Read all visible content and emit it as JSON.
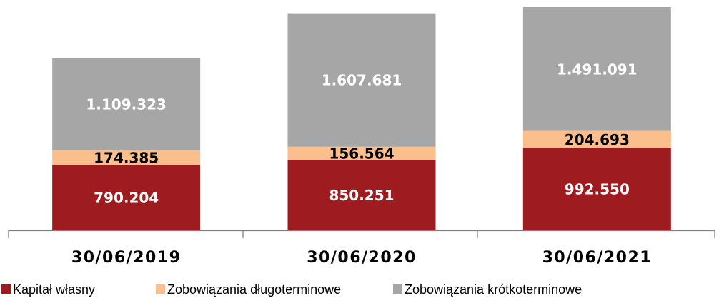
{
  "chart_data": {
    "type": "stacked_bar",
    "categories": [
      "30/06/2019",
      "30/06/2020",
      "30/06/2021"
    ],
    "series": [
      {
        "name": "Kapitał własny",
        "color": "#9e1b20",
        "label_color": "#ffffff",
        "values": [
          790204,
          850251,
          992550
        ],
        "value_labels": [
          "790.204",
          "850.251",
          "992.550"
        ]
      },
      {
        "name": "Zobowiązania długoterminowe",
        "color": "#fbbf8e",
        "label_color": "#000000",
        "values": [
          174385,
          156564,
          204693
        ],
        "value_labels": [
          "174.385",
          "156.564",
          "204.693"
        ]
      },
      {
        "name": "Zobowiązania krótkoterminowe",
        "color": "#a6a6a6",
        "label_color": "#ffffff",
        "values": [
          1109323,
          1607681,
          1491091
        ],
        "value_labels": [
          "1.109.323",
          "1.607.681",
          "1.491.091"
        ]
      }
    ]
  }
}
